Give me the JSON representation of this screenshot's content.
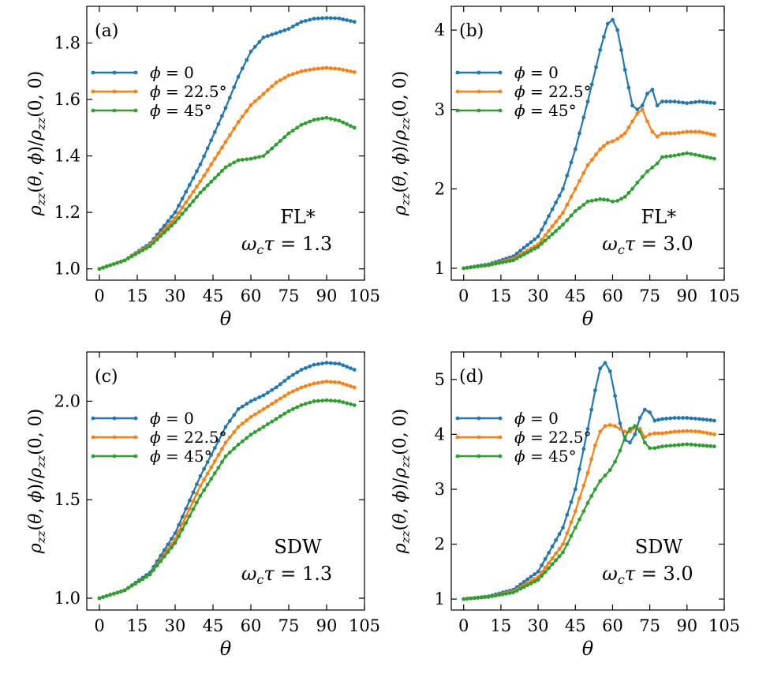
{
  "figure": {
    "title": ""
  },
  "chart_data": [
    {
      "type": "line",
      "panel_label": "(a)",
      "annotation": [
        "FL*",
        "ωcτ = 1.3"
      ],
      "xlabel": "θ",
      "ylabel": "ρzz(θ, φ)/ρzz(0, 0)",
      "xlim": [
        -5,
        105
      ],
      "ylim": [
        0.96,
        1.93
      ],
      "xticks": [
        0,
        15,
        30,
        45,
        60,
        75,
        90,
        105
      ],
      "yticks": [
        1.0,
        1.2,
        1.4,
        1.6,
        1.8
      ],
      "ytick_labels": [
        "1.0",
        "1.2",
        "1.4",
        "1.6",
        "1.8"
      ],
      "x": [
        0,
        10,
        20,
        30,
        40,
        50,
        55,
        60,
        65,
        70,
        75,
        80,
        85,
        90,
        95,
        101
      ],
      "series": [
        {
          "name": "ϕ = 0",
          "color": "#1f77b4",
          "values": [
            1.0,
            1.03,
            1.09,
            1.2,
            1.37,
            1.57,
            1.68,
            1.77,
            1.82,
            1.835,
            1.85,
            1.875,
            1.886,
            1.889,
            1.887,
            1.875
          ]
        },
        {
          "name": "ϕ = 22.5°",
          "color": "#ff7f0e",
          "values": [
            1.0,
            1.03,
            1.085,
            1.18,
            1.31,
            1.45,
            1.52,
            1.58,
            1.62,
            1.66,
            1.685,
            1.7,
            1.708,
            1.712,
            1.708,
            1.697
          ]
        },
        {
          "name": "ϕ = 45°",
          "color": "#2ca02c",
          "values": [
            1.0,
            1.03,
            1.08,
            1.165,
            1.27,
            1.36,
            1.385,
            1.39,
            1.4,
            1.44,
            1.48,
            1.51,
            1.528,
            1.535,
            1.525,
            1.5
          ]
        }
      ]
    },
    {
      "type": "line",
      "panel_label": "(b)",
      "annotation": [
        "FL*",
        "ωcτ = 3.0"
      ],
      "xlabel": "θ",
      "ylabel": "ρzz(θ, φ)/ρzz(0, 0)",
      "xlim": [
        -5,
        105
      ],
      "ylim": [
        0.85,
        4.3
      ],
      "xticks": [
        0,
        15,
        30,
        45,
        60,
        75,
        90,
        105
      ],
      "yticks": [
        1,
        2,
        3,
        4
      ],
      "ytick_labels": [
        "1",
        "2",
        "3",
        "4"
      ],
      "x": [
        0,
        10,
        20,
        30,
        40,
        45,
        50,
        55,
        58,
        60,
        62,
        65,
        68,
        70,
        72,
        74,
        76,
        78,
        80,
        85,
        90,
        95,
        101
      ],
      "series": [
        {
          "name": "ϕ = 0",
          "color": "#1f77b4",
          "values": [
            1.0,
            1.05,
            1.15,
            1.4,
            2.0,
            2.5,
            3.1,
            3.75,
            4.08,
            4.13,
            4.0,
            3.5,
            3.05,
            3.0,
            3.05,
            3.2,
            3.25,
            3.05,
            3.1,
            3.1,
            3.08,
            3.1,
            3.08
          ]
        },
        {
          "name": "ϕ = 22.5°",
          "color": "#ff7f0e",
          "values": [
            1.0,
            1.04,
            1.12,
            1.3,
            1.7,
            2.0,
            2.3,
            2.5,
            2.58,
            2.6,
            2.63,
            2.7,
            2.85,
            2.95,
            3.0,
            2.85,
            2.72,
            2.66,
            2.7,
            2.7,
            2.72,
            2.72,
            2.68
          ]
        },
        {
          "name": "ϕ = 45°",
          "color": "#2ca02c",
          "values": [
            1.0,
            1.04,
            1.1,
            1.27,
            1.55,
            1.72,
            1.84,
            1.87,
            1.86,
            1.84,
            1.85,
            1.9,
            2.0,
            2.08,
            2.15,
            2.22,
            2.27,
            2.32,
            2.4,
            2.42,
            2.45,
            2.42,
            2.38
          ]
        }
      ]
    },
    {
      "type": "line",
      "panel_label": "(c)",
      "annotation": [
        "SDW",
        "ωcτ = 1.3"
      ],
      "xlabel": "θ",
      "ylabel": "ρzz(θ, φ)/ρzz(0, 0)",
      "xlim": [
        -5,
        105
      ],
      "ylim": [
        0.94,
        2.25
      ],
      "xticks": [
        0,
        15,
        30,
        45,
        60,
        75,
        90,
        105
      ],
      "yticks": [
        1.0,
        1.5,
        2.0
      ],
      "ytick_labels": [
        "1.0",
        "1.5",
        "2.0"
      ],
      "x": [
        0,
        10,
        20,
        30,
        40,
        50,
        55,
        60,
        65,
        70,
        75,
        80,
        85,
        90,
        95,
        101
      ],
      "series": [
        {
          "name": "ϕ = 0",
          "color": "#1f77b4",
          "values": [
            1.0,
            1.04,
            1.13,
            1.33,
            1.62,
            1.87,
            1.96,
            2.0,
            2.03,
            2.07,
            2.12,
            2.16,
            2.185,
            2.195,
            2.19,
            2.16
          ]
        },
        {
          "name": "ϕ = 22.5°",
          "color": "#ff7f0e",
          "values": [
            1.0,
            1.04,
            1.12,
            1.3,
            1.57,
            1.79,
            1.87,
            1.92,
            1.96,
            2.0,
            2.04,
            2.07,
            2.09,
            2.1,
            2.095,
            2.07
          ]
        },
        {
          "name": "ϕ = 45°",
          "color": "#2ca02c",
          "values": [
            1.0,
            1.04,
            1.12,
            1.28,
            1.52,
            1.72,
            1.78,
            1.83,
            1.87,
            1.91,
            1.95,
            1.98,
            2.0,
            2.005,
            2.0,
            1.98
          ]
        }
      ]
    },
    {
      "type": "line",
      "panel_label": "(d)",
      "annotation": [
        "SDW",
        "ωcτ = 3.0"
      ],
      "xlabel": "θ",
      "ylabel": "ρzz(θ, φ)/ρzz(0, 0)",
      "xlim": [
        -5,
        105
      ],
      "ylim": [
        0.8,
        5.5
      ],
      "xticks": [
        0,
        15,
        30,
        45,
        60,
        75,
        90,
        105
      ],
      "yticks": [
        1,
        2,
        3,
        4,
        5
      ],
      "ytick_labels": [
        "1",
        "2",
        "3",
        "4",
        "5"
      ],
      "x": [
        0,
        10,
        20,
        30,
        40,
        45,
        50,
        53,
        55,
        57,
        59,
        61,
        63,
        65,
        67,
        69,
        71,
        73,
        75,
        77,
        80,
        85,
        90,
        95,
        101
      ],
      "series": [
        {
          "name": "ϕ = 0",
          "color": "#1f77b4",
          "values": [
            1.0,
            1.05,
            1.17,
            1.5,
            2.3,
            3.0,
            4.1,
            4.8,
            5.2,
            5.3,
            5.15,
            4.7,
            4.2,
            3.9,
            3.85,
            4.0,
            4.3,
            4.45,
            4.4,
            4.25,
            4.28,
            4.3,
            4.3,
            4.28,
            4.25
          ]
        },
        {
          "name": "ϕ = 22.5°",
          "color": "#ff7f0e",
          "values": [
            1.0,
            1.04,
            1.14,
            1.4,
            2.0,
            2.6,
            3.3,
            3.8,
            4.05,
            4.15,
            4.17,
            4.15,
            4.1,
            4.05,
            4.05,
            4.12,
            4.1,
            3.95,
            4.0,
            4.02,
            4.02,
            4.05,
            4.06,
            4.05,
            4.0
          ]
        },
        {
          "name": "ϕ = 45°",
          "color": "#2ca02c",
          "values": [
            1.0,
            1.04,
            1.12,
            1.35,
            1.85,
            2.3,
            2.75,
            3.0,
            3.15,
            3.25,
            3.35,
            3.5,
            3.7,
            3.95,
            4.1,
            4.15,
            4.05,
            3.85,
            3.75,
            3.75,
            3.78,
            3.8,
            3.82,
            3.8,
            3.78
          ]
        }
      ]
    }
  ]
}
